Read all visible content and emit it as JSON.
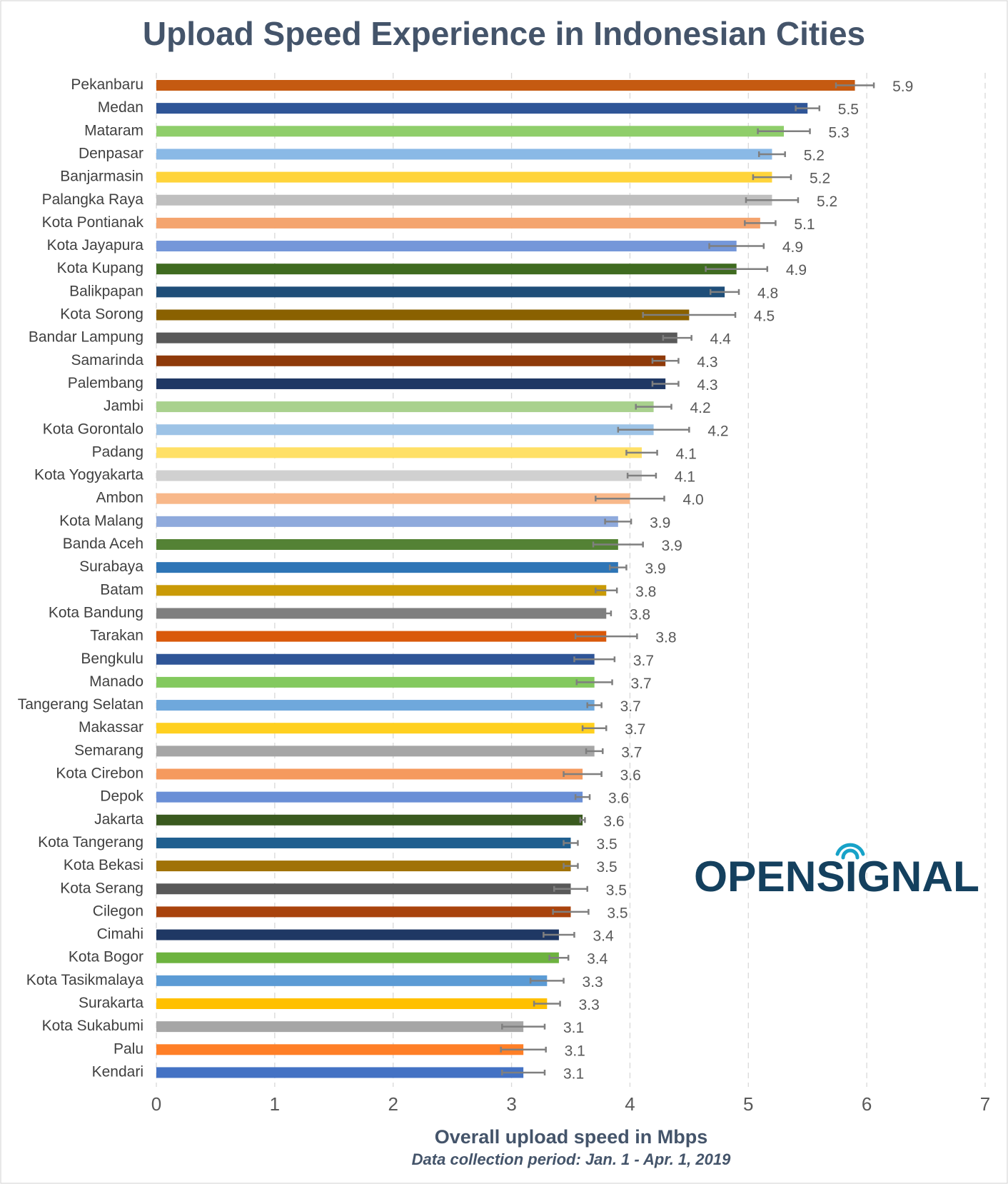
{
  "chart_data": {
    "type": "hbar",
    "title": "Upload Speed Experience in Indonesian Cities",
    "categories": [
      "Pekanbaru",
      "Medan",
      "Mataram",
      "Denpasar",
      "Banjarmasin",
      "Palangka Raya",
      "Kota Pontianak",
      "Kota Jayapura",
      "Kota Kupang",
      "Balikpapan",
      "Kota Sorong",
      "Bandar Lampung",
      "Samarinda",
      "Palembang",
      "Jambi",
      "Kota Gorontalo",
      "Padang",
      "Kota Yogyakarta",
      "Ambon",
      "Kota Malang",
      "Banda Aceh",
      "Surabaya",
      "Batam",
      "Kota Bandung",
      "Tarakan",
      "Bengkulu",
      "Manado",
      "Tangerang Selatan",
      "Makassar",
      "Semarang",
      "Kota Cirebon",
      "Depok",
      "Jakarta",
      "Kota Tangerang",
      "Kota Bekasi",
      "Kota Serang",
      "Cilegon",
      "Cimahi",
      "Kota Bogor",
      "Kota Tasikmalaya",
      "Surakarta",
      "Kota Sukabumi",
      "Palu",
      "Kendari"
    ],
    "values": [
      5.9,
      5.5,
      5.3,
      5.2,
      5.2,
      5.2,
      5.1,
      4.9,
      4.9,
      4.8,
      4.5,
      4.4,
      4.3,
      4.3,
      4.2,
      4.2,
      4.1,
      4.1,
      4.0,
      3.9,
      3.9,
      3.9,
      3.8,
      3.8,
      3.8,
      3.7,
      3.7,
      3.7,
      3.7,
      3.7,
      3.6,
      3.6,
      3.6,
      3.5,
      3.5,
      3.5,
      3.5,
      3.4,
      3.4,
      3.3,
      3.3,
      3.1,
      3.1,
      3.1
    ],
    "value_labels": [
      "5.9",
      "5.5",
      "5.3",
      "5.2",
      "5.2",
      "5.2",
      "5.1",
      "4.9",
      "4.9",
      "4.8",
      "4.5",
      "4.4",
      "4.3",
      "4.3",
      "4.2",
      "4.2",
      "4.1",
      "4.1",
      "4.0",
      "3.9",
      "3.9",
      "3.9",
      "3.8",
      "3.8",
      "3.8",
      "3.7",
      "3.7",
      "3.7",
      "3.7",
      "3.7",
      "3.6",
      "3.6",
      "3.6",
      "3.5",
      "3.5",
      "3.5",
      "3.5",
      "3.4",
      "3.4",
      "3.3",
      "3.3",
      "3.1",
      "3.1",
      "3.1"
    ],
    "errors": [
      0.16,
      0.1,
      0.22,
      0.11,
      0.16,
      0.22,
      0.13,
      0.23,
      0.26,
      0.12,
      0.39,
      0.12,
      0.11,
      0.11,
      0.15,
      0.3,
      0.13,
      0.12,
      0.29,
      0.11,
      0.21,
      0.07,
      0.09,
      0.04,
      0.26,
      0.17,
      0.15,
      0.06,
      0.1,
      0.07,
      0.16,
      0.06,
      0.02,
      0.06,
      0.06,
      0.14,
      0.15,
      0.13,
      0.08,
      0.14,
      0.11,
      0.18,
      0.19,
      0.18
    ],
    "colors": [
      "#c55a11",
      "#2f5597",
      "#8fce6a",
      "#8ab9e6",
      "#ffd43b",
      "#bfbfbf",
      "#f4a46e",
      "#7597d9",
      "#3f6b20",
      "#1f4e79",
      "#8a6100",
      "#595959",
      "#8f3a0a",
      "#203864",
      "#a9d18e",
      "#9dc3e6",
      "#ffe066",
      "#d0d0d0",
      "#f8b88a",
      "#8faadc",
      "#548235",
      "#2e75b6",
      "#c99a06",
      "#7f7f7f",
      "#d9590b",
      "#2f5597",
      "#83c95e",
      "#6fa8dc",
      "#ffd020",
      "#a6a6a6",
      "#f59a5e",
      "#6a8fd6",
      "#3a5a1f",
      "#1f5f8f",
      "#a07208",
      "#595959",
      "#a9430d",
      "#1f3864",
      "#6db33f",
      "#5b9bd5",
      "#ffc000",
      "#a6a6a6",
      "#ff7f27",
      "#4472c4"
    ],
    "error_color": "#7f7f7f",
    "xlim": [
      0,
      7
    ],
    "xticks": [
      0,
      1,
      2,
      3,
      4,
      5,
      6,
      7
    ],
    "grid": true,
    "xlabel": "Overall upload speed in Mbps",
    "subtitle": "Data collection period: Jan. 1 - Apr. 1, 2019",
    "logo": "OPENSIGNAL"
  }
}
